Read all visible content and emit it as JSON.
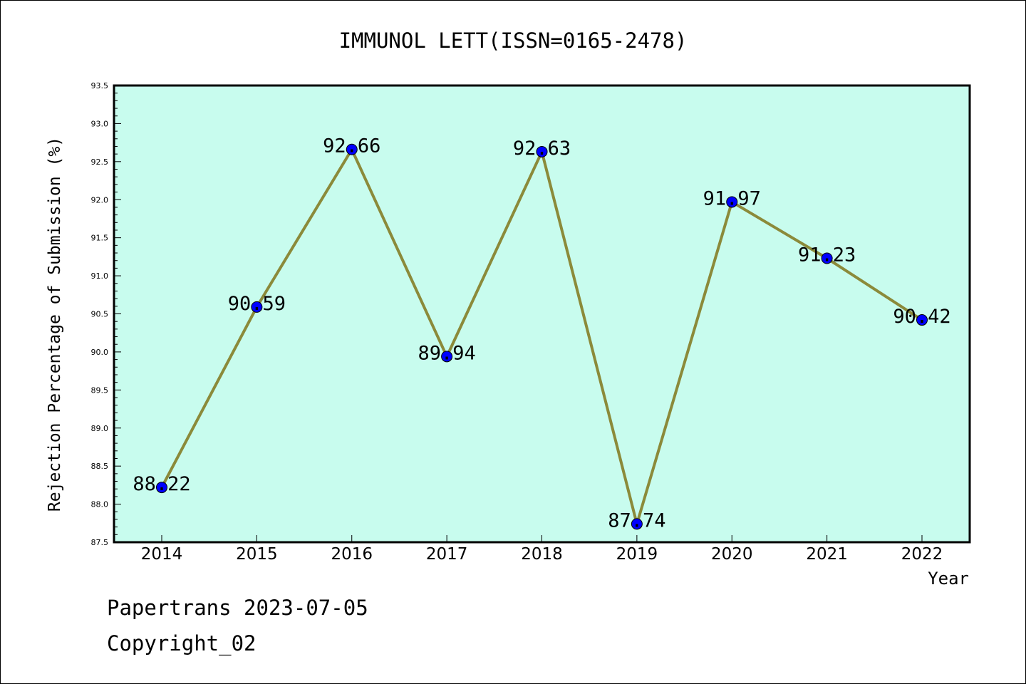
{
  "chart_data": {
    "type": "line",
    "title": "IMMUNOL LETT(ISSN=0165-2478)",
    "xlabel": "Year",
    "ylabel": "Rejection Percentage of Submission (%)",
    "categories": [
      "2014",
      "2015",
      "2016",
      "2017",
      "2018",
      "2019",
      "2020",
      "2021",
      "2022"
    ],
    "values": [
      88.22,
      90.59,
      92.66,
      89.94,
      92.63,
      87.74,
      91.97,
      91.23,
      90.42
    ],
    "data_labels": [
      "88.22",
      "90.59",
      "92.66",
      "89.94",
      "92.63",
      "87.74",
      "91.97",
      "91.23",
      "90.42"
    ],
    "ylim": [
      87.5,
      93.5
    ],
    "yticks": [
      "87.5",
      "88.0",
      "88.5",
      "89.0",
      "89.5",
      "90.0",
      "90.5",
      "91.0",
      "91.5",
      "92.0",
      "92.5",
      "93.0",
      "93.5"
    ],
    "grid": false,
    "legend": "none",
    "colors": {
      "plot_background": "#c8fcee",
      "line": "#8b8a3a",
      "marker": "#0000ff"
    }
  },
  "footer": {
    "date_line": "Papertrans 2023-07-05",
    "copyright_line": "Copyright_02"
  }
}
